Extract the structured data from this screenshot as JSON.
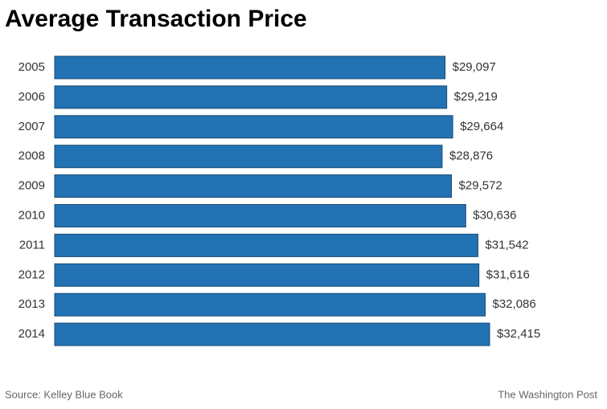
{
  "chart_data": {
    "type": "bar",
    "orientation": "horizontal",
    "title": "Average Transaction Price",
    "categories": [
      "2005",
      "2006",
      "2007",
      "2008",
      "2009",
      "2010",
      "2011",
      "2012",
      "2013",
      "2014"
    ],
    "values": [
      29097,
      29219,
      29664,
      28876,
      29572,
      30636,
      31542,
      31616,
      32086,
      32415
    ],
    "value_labels": [
      "$29,097",
      "$29,219",
      "$29,664",
      "$28,876",
      "$29,572",
      "$30,636",
      "$31,542",
      "$31,616",
      "$32,086",
      "$32,415"
    ],
    "color": "#2272b4",
    "source": "Source: Kelley Blue Book",
    "credit": "The Washington Post"
  }
}
